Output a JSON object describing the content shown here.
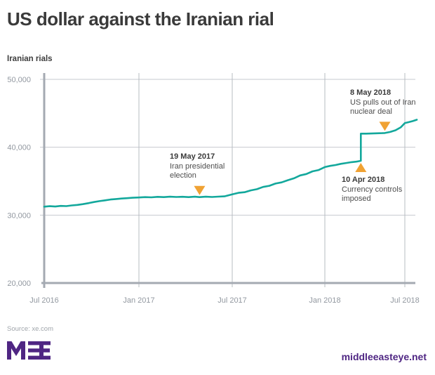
{
  "page": {
    "title": "US dollar against the Iranian rial",
    "source_note": "Source: xe.com",
    "website": "middleeasteye.net",
    "logo_text": "MEE",
    "brand_purple": "#4f2683"
  },
  "chart_data": {
    "type": "line",
    "title": "US dollar against the Iranian rial",
    "ylabel": "Iranian rials",
    "xlabel": "",
    "unit": "Iranian rials per US dollar",
    "ylim": [
      20000,
      50000
    ],
    "grid": true,
    "line_color": "#13a89c",
    "marker_color": "#f0a233",
    "axis_color": "#a4aab2",
    "gridline_color": "#c6cacf",
    "v_gridline_color": "#b7bcc2",
    "tick_label_color": "#9298a0",
    "y_ticks": [
      {
        "label": "20,000",
        "value": 20000
      },
      {
        "label": "30,000",
        "value": 30000
      },
      {
        "label": "40,000",
        "value": 40000
      },
      {
        "label": "50,000",
        "value": 50000
      }
    ],
    "x_ticks": [
      {
        "label": "Jul 2016",
        "m": 0
      },
      {
        "label": "Jan 2017",
        "m": 6
      },
      {
        "label": "Jul 2017",
        "m": 12
      },
      {
        "label": "Jan 2018",
        "m": 18
      },
      {
        "label": "Jul 2018",
        "m": 24
      }
    ],
    "series": [
      {
        "name": "USD/IRR",
        "points": [
          [
            0,
            31250
          ],
          [
            0.35,
            31320
          ],
          [
            0.7,
            31270
          ],
          [
            1.05,
            31360
          ],
          [
            1.4,
            31330
          ],
          [
            1.75,
            31430
          ],
          [
            2.1,
            31500
          ],
          [
            2.45,
            31620
          ],
          [
            2.8,
            31760
          ],
          [
            3.15,
            31930
          ],
          [
            3.5,
            32060
          ],
          [
            3.85,
            32180
          ],
          [
            4.2,
            32300
          ],
          [
            4.55,
            32370
          ],
          [
            4.9,
            32440
          ],
          [
            5.25,
            32500
          ],
          [
            5.6,
            32560
          ],
          [
            6,
            32600
          ],
          [
            6.4,
            32650
          ],
          [
            6.8,
            32620
          ],
          [
            7.2,
            32690
          ],
          [
            7.6,
            32650
          ],
          [
            8,
            32710
          ],
          [
            8.4,
            32670
          ],
          [
            8.8,
            32700
          ],
          [
            9.2,
            32650
          ],
          [
            9.6,
            32710
          ],
          [
            9.9,
            32650
          ],
          [
            10.3,
            32710
          ],
          [
            10.7,
            32670
          ],
          [
            11.1,
            32720
          ],
          [
            11.5,
            32770
          ],
          [
            12,
            33060
          ],
          [
            12.4,
            33280
          ],
          [
            12.8,
            33380
          ],
          [
            13.2,
            33650
          ],
          [
            13.6,
            33820
          ],
          [
            14,
            34150
          ],
          [
            14.4,
            34320
          ],
          [
            14.8,
            34650
          ],
          [
            15.2,
            34820
          ],
          [
            15.6,
            35150
          ],
          [
            16,
            35420
          ],
          [
            16.4,
            35850
          ],
          [
            16.8,
            36050
          ],
          [
            17.2,
            36450
          ],
          [
            17.6,
            36650
          ],
          [
            18,
            37080
          ],
          [
            18.4,
            37260
          ],
          [
            18.8,
            37380
          ],
          [
            19.2,
            37560
          ],
          [
            19.6,
            37680
          ],
          [
            20,
            37800
          ],
          [
            20.35,
            37880
          ],
          [
            20.7,
            38000
          ],
          [
            20.7,
            42000
          ],
          [
            21.1,
            42000
          ],
          [
            21.5,
            42020
          ],
          [
            21.9,
            42050
          ],
          [
            22.3,
            42080
          ],
          [
            22.5,
            42100
          ],
          [
            22.9,
            42250
          ],
          [
            23.3,
            42500
          ],
          [
            23.7,
            42950
          ],
          [
            24,
            43550
          ],
          [
            24.3,
            43700
          ],
          [
            24.6,
            43850
          ],
          [
            24.9,
            44050
          ]
        ]
      }
    ],
    "events": [
      {
        "title": "19 May 2017",
        "lines": [
          "Iran presidential",
          "election"
        ],
        "m": 9.9,
        "value": 32650,
        "pointer": "down"
      },
      {
        "title": "10 Apr 2018",
        "lines": [
          "Currency controls",
          "imposed"
        ],
        "m": 20.7,
        "value": 38000,
        "pointer": "up"
      },
      {
        "title": "8 May 2018",
        "lines": [
          "US pulls out of Iran",
          "nuclear deal"
        ],
        "m": 22.5,
        "value": 42100,
        "pointer": "down"
      }
    ]
  }
}
